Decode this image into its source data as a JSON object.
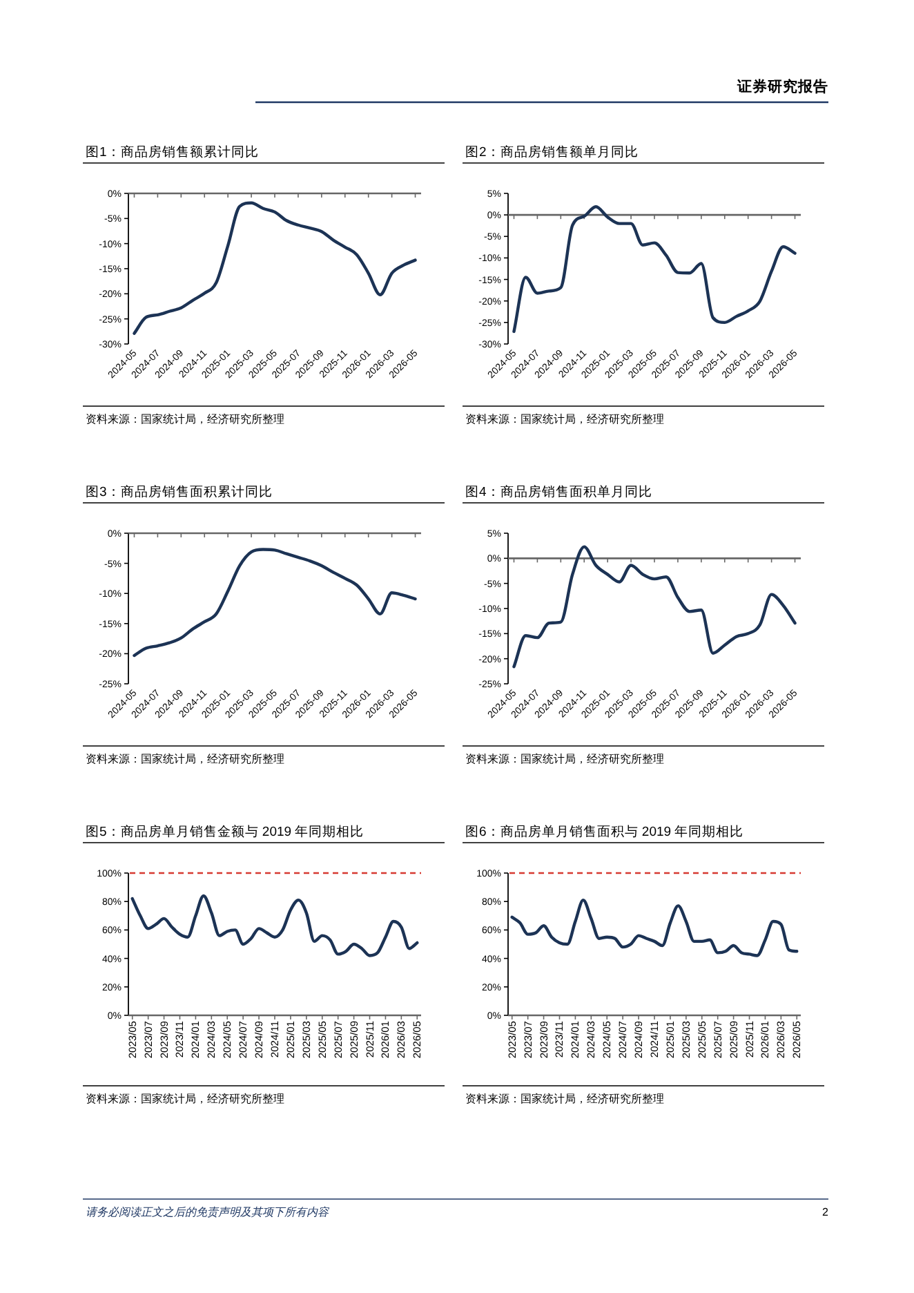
{
  "chart_data": [
    {
      "type": "other",
      "title": "证券研究报告"
    },
    {
      "type": "line",
      "title": "图1：商品房销售额累计同比",
      "categories": [
        "2024-05",
        null,
        "2024-07",
        null,
        "2024-09",
        null,
        "2024-11",
        null,
        "2025-01",
        null,
        "2025-03",
        null,
        "2025-05",
        null,
        "2025-07",
        null,
        "2025-09",
        null,
        "2025-11",
        null,
        "2026-01",
        null,
        "2026-03",
        null,
        "2026-05"
      ],
      "series": [
        {
          "color": "#1c3355",
          "values": [
            -27.9,
            -24.7,
            -24.2,
            -23.5,
            -22.8,
            -21.3,
            -19.9,
            -17.8,
            -10.4,
            -2.6,
            -1.9,
            -3.0,
            -3.7,
            -5.4,
            -6.3,
            -6.9,
            -7.6,
            -9.3,
            -10.7,
            -12.2,
            -15.9,
            -20.2,
            -15.9,
            -14.3,
            -13.3
          ]
        }
      ],
      "ylim": [
        -30,
        0
      ],
      "yticks": [
        {
          "value": 0,
          "label": "0%"
        },
        {
          "value": -5,
          "label": "-5%"
        },
        {
          "value": -10,
          "label": "-10%"
        },
        {
          "value": -15,
          "label": "-15%"
        },
        {
          "value": -20,
          "label": "-20%"
        },
        {
          "value": -25,
          "label": "-25%"
        },
        {
          "value": -30,
          "label": "-30%"
        }
      ],
      "annotations": [
        "资料来源：国家统计局，经济研究所整理"
      ]
    },
    {
      "type": "line",
      "title": "图2：商品房销售额单月同比",
      "categories": [
        "2024-05",
        null,
        "2024-07",
        null,
        "2024-09",
        null,
        "2024-11",
        null,
        "2025-01",
        null,
        "2025-03",
        null,
        "2025-05",
        null,
        "2025-07",
        null,
        "2025-09",
        null,
        "2025-11",
        null,
        "2026-01",
        null,
        "2026-03",
        null,
        "2026-05"
      ],
      "series": [
        {
          "color": "#1c3355",
          "values": [
            -27.1,
            -14.5,
            -18.2,
            -17.7,
            -16.9,
            -2.4,
            -0.3,
            1.9,
            -0.5,
            -2.0,
            -2.0,
            -7.0,
            -6.5,
            -9.4,
            -13.4,
            -13.5,
            -11.3,
            -23.9,
            -25.0,
            -23.6,
            -22.3,
            -20.1,
            -13.1,
            -7.4,
            -8.9
          ]
        }
      ],
      "ylim": [
        -30,
        5
      ],
      "yticks": [
        {
          "value": 5,
          "label": "5%"
        },
        {
          "value": 0,
          "label": "0%"
        },
        {
          "value": -5,
          "label": "-5%"
        },
        {
          "value": -10,
          "label": "-10%"
        },
        {
          "value": -15,
          "label": "-15%"
        },
        {
          "value": -20,
          "label": "-20%"
        },
        {
          "value": -25,
          "label": "-25%"
        },
        {
          "value": -30,
          "label": "-30%"
        }
      ],
      "annotations": [
        "资料来源：国家统计局，经济研究所整理"
      ]
    },
    {
      "type": "line",
      "title": "图3：商品房销售面积累计同比",
      "categories": [
        "2024-05",
        null,
        "2024-07",
        null,
        "2024-09",
        null,
        "2024-11",
        null,
        "2025-01",
        null,
        "2025-03",
        null,
        "2025-05",
        null,
        "2025-07",
        null,
        "2025-09",
        null,
        "2025-11",
        null,
        "2026-01",
        null,
        "2026-03",
        null,
        "2026-05"
      ],
      "series": [
        {
          "color": "#1c3355",
          "values": [
            -20.3,
            -19.1,
            -18.7,
            -18.2,
            -17.4,
            -15.9,
            -14.7,
            -13.4,
            -9.6,
            -5.4,
            -3.1,
            -2.7,
            -2.8,
            -3.4,
            -4.0,
            -4.6,
            -5.4,
            -6.5,
            -7.5,
            -8.6,
            -10.9,
            -13.4,
            -9.9,
            -10.3,
            -10.9
          ]
        }
      ],
      "ylim": [
        -25,
        0
      ],
      "yticks": [
        {
          "value": 0,
          "label": "0%"
        },
        {
          "value": -5,
          "label": "-5%"
        },
        {
          "value": -10,
          "label": "-10%"
        },
        {
          "value": -15,
          "label": "-15%"
        },
        {
          "value": -20,
          "label": "-20%"
        },
        {
          "value": -25,
          "label": "-25%"
        }
      ],
      "annotations": [
        "资料来源：国家统计局，经济研究所整理"
      ]
    },
    {
      "type": "line",
      "title": "图4：商品房销售面积单月同比",
      "categories": [
        "2024-05",
        null,
        "2024-07",
        null,
        "2024-09",
        null,
        "2024-11",
        null,
        "2025-01",
        null,
        "2025-03",
        null,
        "2025-05",
        null,
        "2025-07",
        null,
        "2025-09",
        null,
        "2025-11",
        null,
        "2026-01",
        null,
        "2026-03",
        null,
        "2026-05"
      ],
      "series": [
        {
          "color": "#1c3355",
          "values": [
            -21.6,
            -15.4,
            -15.8,
            -12.9,
            -12.7,
            -3.2,
            2.3,
            -1.4,
            -3.2,
            -4.7,
            -1.4,
            -3.2,
            -4.1,
            -3.7,
            -7.8,
            -10.6,
            -10.3,
            -18.9,
            -17.3,
            -15.6,
            -15.0,
            -13.3,
            -7.2,
            -9.4,
            -12.9
          ]
        }
      ],
      "ylim": [
        -25,
        5
      ],
      "yticks": [
        {
          "value": 5,
          "label": "5%"
        },
        {
          "value": 0,
          "label": "0%"
        },
        {
          "value": -5,
          "label": "-5%"
        },
        {
          "value": -10,
          "label": "-10%"
        },
        {
          "value": -15,
          "label": "-15%"
        },
        {
          "value": -20,
          "label": "-20%"
        },
        {
          "value": -25,
          "label": "-25%"
        }
      ],
      "annotations": [
        "资料来源：国家统计局，经济研究所整理"
      ]
    },
    {
      "type": "line",
      "title": "图5：商品房单月销售金额与 2019 年同期相比",
      "categories": [
        "2023/05",
        null,
        "2023/07",
        null,
        "2023/09",
        null,
        "2023/11",
        null,
        "2024/01",
        null,
        "2024/03",
        null,
        "2024/05",
        null,
        "2024/07",
        null,
        "2024/09",
        null,
        "2024/11",
        null,
        "2025/01",
        null,
        "2025/03",
        null,
        "2025/05",
        null,
        "2025/07",
        null,
        "2025/09",
        null,
        "2025/11",
        null,
        "2026/01",
        null,
        "2026/03",
        null,
        "2026/05"
      ],
      "series": [
        {
          "color": "#1c3355",
          "values": [
            82,
            70,
            61,
            64,
            68,
            62,
            57,
            55,
            70,
            84,
            72,
            56,
            59,
            60,
            50,
            54,
            61,
            58,
            55,
            60,
            74,
            81,
            72,
            52,
            56,
            53,
            43,
            45,
            50,
            47,
            42,
            44,
            55,
            66,
            62,
            47,
            51
          ]
        }
      ],
      "ylim": [
        0,
        100
      ],
      "yticks": [
        {
          "value": 0,
          "label": "0%"
        },
        {
          "value": 20,
          "label": "20%"
        },
        {
          "value": 40,
          "label": "40%"
        },
        {
          "value": 60,
          "label": "60%"
        },
        {
          "value": 80,
          "label": "80%"
        },
        {
          "value": 100,
          "label": "100%"
        }
      ],
      "ref_lines": [
        {
          "axis": "y",
          "value": 100,
          "color": "#d63a32",
          "line_style": "dashed"
        }
      ],
      "annotations": [
        "资料来源：国家统计局，经济研究所整理"
      ]
    },
    {
      "type": "line",
      "title": "图6：商品房单月销售面积与 2019 年同期相比",
      "categories": [
        "2023/05",
        null,
        "2023/07",
        null,
        "2023/09",
        null,
        "2023/11",
        null,
        "2024/01",
        null,
        "2024/03",
        null,
        "2024/05",
        null,
        "2024/07",
        null,
        "2024/09",
        null,
        "2024/11",
        null,
        "2025/01",
        null,
        "2025/03",
        null,
        "2025/05",
        null,
        "2025/07",
        null,
        "2025/09",
        null,
        "2025/11",
        null,
        "2026/01",
        null,
        "2026/03",
        null,
        "2026/05"
      ],
      "series": [
        {
          "color": "#1c3355",
          "values": [
            69,
            65,
            57,
            58,
            63,
            55,
            51,
            50,
            66,
            81,
            68,
            54,
            55,
            54,
            48,
            50,
            56,
            54,
            52,
            49,
            65,
            77,
            66,
            52,
            52,
            53,
            44,
            45,
            49,
            44,
            43,
            42,
            53,
            66,
            64,
            46,
            45
          ]
        }
      ],
      "ylim": [
        0,
        100
      ],
      "yticks": [
        {
          "value": 0,
          "label": "0%"
        },
        {
          "value": 20,
          "label": "20%"
        },
        {
          "value": 40,
          "label": "40%"
        },
        {
          "value": 60,
          "label": "60%"
        },
        {
          "value": 80,
          "label": "80%"
        },
        {
          "value": 100,
          "label": "100%"
        }
      ],
      "ref_lines": [
        {
          "axis": "y",
          "value": 100,
          "color": "#d63a32",
          "line_style": "dashed"
        }
      ],
      "annotations": [
        "资料来源：国家统计局，经济研究所整理"
      ]
    },
    {
      "type": "other",
      "annotations": [
        "请务必阅读正文之后的免责声明及其项下所有内容",
        "2"
      ]
    }
  ]
}
